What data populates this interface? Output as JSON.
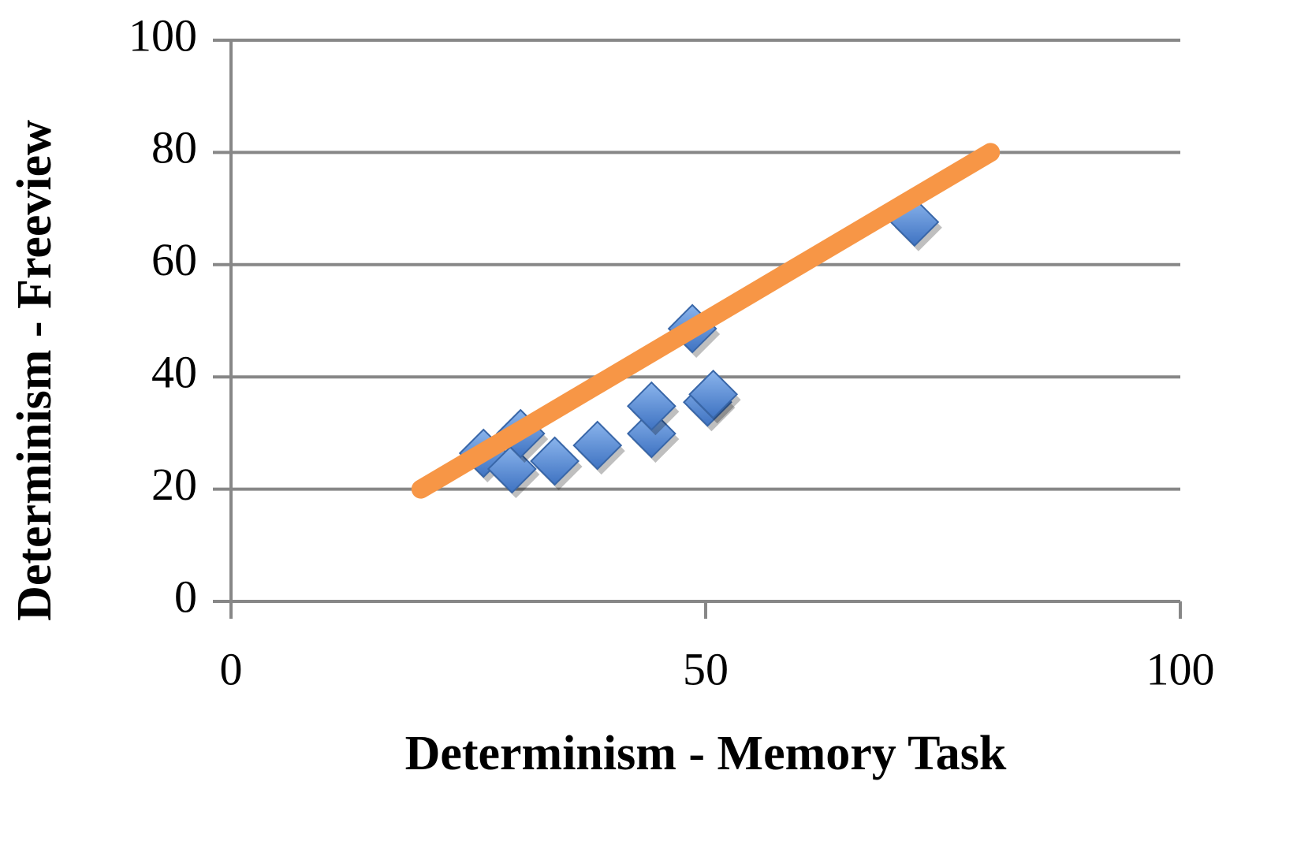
{
  "chart_data": {
    "type": "scatter",
    "x_label": "Determinism - Memory Task",
    "y_label": "Determinism - Freeview",
    "xlim": [
      0,
      100
    ],
    "xticks": [
      0,
      50,
      100
    ],
    "ylim": [
      0,
      100
    ],
    "yticks": [
      0,
      20,
      40,
      60,
      80,
      100
    ],
    "grid": true,
    "series": [
      {
        "mode": "markers",
        "color": "#5b8fd6",
        "x": [
          26.6,
          29.6,
          30.5,
          34.1,
          38.6,
          44.3,
          44.3,
          48.6,
          50.2,
          50.8,
          72
        ],
        "values": [
          26.4,
          23.6,
          29.9,
          25,
          27.8,
          29.9,
          34.8,
          48.6,
          35.5,
          36.9,
          67.6
        ]
      },
      {
        "mode": "line",
        "color": "#f79646",
        "x": [
          20,
          80
        ],
        "values": [
          20,
          80
        ]
      }
    ]
  }
}
